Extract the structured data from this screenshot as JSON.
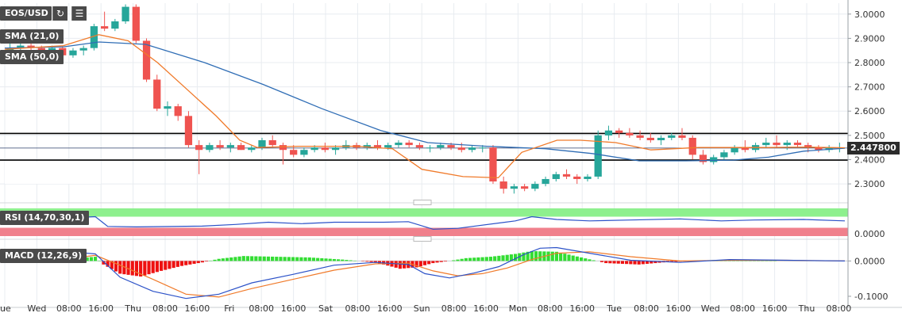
{
  "symbol_label": "EOS/USD",
  "toolbar": {
    "refresh_icon": "refresh-icon",
    "settings_icon": "chart-settings-icon"
  },
  "indicators": {
    "sma21_label": "SMA (21,0)",
    "sma50_label": "SMA (50,0)",
    "rsi_label": "RSI (14,70,30,1)",
    "macd_label": "MACD (12,26,9)"
  },
  "colors": {
    "bull": "#26a69a",
    "bear": "#ef5350",
    "sma21": "#f07a2a",
    "sma50": "#2f6db5",
    "rsi_line": "#2c52c8",
    "rsi_upper_band": "#8ef08e",
    "rsi_lower_band": "#f0808c",
    "macd_pos": "#33dd33",
    "macd_neg": "#ee1111",
    "macd_line": "#2c52c8",
    "signal_line": "#f07a2a",
    "grid": "#e8ecf0",
    "axis_text": "#333333",
    "level_line": "#000000"
  },
  "chart_data": {
    "type": "candlestick",
    "symbol": "EOS/USD",
    "price_axis": {
      "ticks": [
        "3.0000",
        "2.9000",
        "2.8000",
        "2.7000",
        "2.6000",
        "2.5000",
        "2.4000",
        "2.3000"
      ],
      "ylim": [
        2.235,
        3.045
      ]
    },
    "last_price": "2.447800",
    "horizontal_levels": [
      2.508,
      2.398
    ],
    "time_axis": [
      "ue",
      "Wed",
      "08:00",
      "16:00",
      "Thu",
      "08:00",
      "16:00",
      "Fri",
      "08:00",
      "16:00",
      "Sat",
      "08:00",
      "16:00",
      "Sun",
      "08:00",
      "16:00",
      "Mon",
      "08:00",
      "16:00",
      "Tue",
      "08:00",
      "16:00",
      "Wed",
      "08:00",
      "16:00",
      "Thu",
      "08:00"
    ],
    "bars_per_label": 2,
    "ohlc": [
      [
        2.85,
        2.88,
        2.82,
        2.86
      ],
      [
        2.86,
        2.88,
        2.84,
        2.87
      ],
      [
        2.87,
        2.89,
        2.85,
        2.86
      ],
      [
        2.86,
        2.87,
        2.84,
        2.85
      ],
      [
        2.85,
        2.87,
        2.83,
        2.86
      ],
      [
        2.86,
        2.87,
        2.82,
        2.83
      ],
      [
        2.83,
        2.86,
        2.82,
        2.85
      ],
      [
        2.85,
        2.87,
        2.83,
        2.86
      ],
      [
        2.86,
        2.96,
        2.85,
        2.95
      ],
      [
        2.95,
        3.01,
        2.93,
        2.94
      ],
      [
        2.94,
        2.98,
        2.93,
        2.97
      ],
      [
        2.97,
        3.04,
        2.96,
        3.03
      ],
      [
        3.03,
        3.04,
        2.88,
        2.89
      ],
      [
        2.89,
        2.9,
        2.72,
        2.73
      ],
      [
        2.73,
        2.75,
        2.6,
        2.61
      ],
      [
        2.61,
        2.64,
        2.58,
        2.62
      ],
      [
        2.62,
        2.63,
        2.56,
        2.58
      ],
      [
        2.58,
        2.6,
        2.45,
        2.46
      ],
      [
        2.46,
        2.48,
        2.34,
        2.44
      ],
      [
        2.44,
        2.47,
        2.43,
        2.46
      ],
      [
        2.46,
        2.48,
        2.44,
        2.45
      ],
      [
        2.45,
        2.47,
        2.43,
        2.46
      ],
      [
        2.46,
        2.47,
        2.44,
        2.44
      ],
      [
        2.44,
        2.46,
        2.43,
        2.45
      ],
      [
        2.45,
        2.49,
        2.44,
        2.48
      ],
      [
        2.48,
        2.5,
        2.45,
        2.46
      ],
      [
        2.46,
        2.47,
        2.38,
        2.44
      ],
      [
        2.44,
        2.46,
        2.41,
        2.42
      ],
      [
        2.42,
        2.45,
        2.41,
        2.44
      ],
      [
        2.44,
        2.46,
        2.43,
        2.45
      ],
      [
        2.45,
        2.47,
        2.43,
        2.44
      ],
      [
        2.44,
        2.46,
        2.42,
        2.45
      ],
      [
        2.45,
        2.48,
        2.44,
        2.46
      ],
      [
        2.46,
        2.47,
        2.44,
        2.45
      ],
      [
        2.45,
        2.47,
        2.44,
        2.46
      ],
      [
        2.46,
        2.48,
        2.44,
        2.45
      ],
      [
        2.45,
        2.47,
        2.44,
        2.46
      ],
      [
        2.46,
        2.48,
        2.45,
        2.47
      ],
      [
        2.47,
        2.48,
        2.45,
        2.46
      ],
      [
        2.46,
        2.47,
        2.44,
        2.45
      ],
      [
        2.45,
        2.46,
        2.43,
        2.45
      ],
      [
        2.45,
        2.47,
        2.44,
        2.46
      ],
      [
        2.46,
        2.47,
        2.44,
        2.45
      ],
      [
        2.45,
        2.47,
        2.43,
        2.44
      ],
      [
        2.44,
        2.46,
        2.43,
        2.45
      ],
      [
        2.45,
        2.46,
        2.43,
        2.45
      ],
      [
        2.45,
        2.46,
        2.3,
        2.31
      ],
      [
        2.31,
        2.33,
        2.26,
        2.28
      ],
      [
        2.28,
        2.3,
        2.26,
        2.29
      ],
      [
        2.29,
        2.3,
        2.27,
        2.28
      ],
      [
        2.28,
        2.31,
        2.27,
        2.3
      ],
      [
        2.3,
        2.33,
        2.29,
        2.32
      ],
      [
        2.32,
        2.35,
        2.31,
        2.34
      ],
      [
        2.34,
        2.36,
        2.32,
        2.33
      ],
      [
        2.33,
        2.34,
        2.3,
        2.32
      ],
      [
        2.32,
        2.34,
        2.31,
        2.33
      ],
      [
        2.33,
        2.52,
        2.32,
        2.5
      ],
      [
        2.5,
        2.54,
        2.48,
        2.52
      ],
      [
        2.52,
        2.53,
        2.49,
        2.51
      ],
      [
        2.51,
        2.53,
        2.49,
        2.5
      ],
      [
        2.5,
        2.52,
        2.48,
        2.49
      ],
      [
        2.49,
        2.51,
        2.47,
        2.48
      ],
      [
        2.48,
        2.5,
        2.46,
        2.49
      ],
      [
        2.49,
        2.51,
        2.48,
        2.5
      ],
      [
        2.5,
        2.53,
        2.48,
        2.49
      ],
      [
        2.49,
        2.5,
        2.4,
        2.42
      ],
      [
        2.42,
        2.44,
        2.38,
        2.39
      ],
      [
        2.39,
        2.42,
        2.38,
        2.41
      ],
      [
        2.41,
        2.44,
        2.4,
        2.43
      ],
      [
        2.43,
        2.46,
        2.42,
        2.45
      ],
      [
        2.45,
        2.48,
        2.43,
        2.44
      ],
      [
        2.44,
        2.47,
        2.43,
        2.46
      ],
      [
        2.46,
        2.49,
        2.45,
        2.47
      ],
      [
        2.47,
        2.5,
        2.45,
        2.46
      ],
      [
        2.46,
        2.48,
        2.44,
        2.47
      ],
      [
        2.47,
        2.48,
        2.45,
        2.46
      ],
      [
        2.46,
        2.47,
        2.43,
        2.45
      ],
      [
        2.45,
        2.46,
        2.43,
        2.44
      ],
      [
        2.44,
        2.46,
        2.43,
        2.45
      ],
      [
        2.45,
        2.47,
        2.43,
        2.45
      ]
    ],
    "sma21": [
      [
        0,
        2.855
      ],
      [
        10,
        2.87
      ],
      [
        16,
        2.915
      ],
      [
        21,
        2.89
      ],
      [
        26,
        2.8
      ],
      [
        31,
        2.69
      ],
      [
        36,
        2.58
      ],
      [
        40,
        2.48
      ],
      [
        43,
        2.45
      ],
      [
        50,
        2.455
      ],
      [
        60,
        2.455
      ],
      [
        66,
        2.445
      ],
      [
        71,
        2.36
      ],
      [
        78,
        2.33
      ],
      [
        84,
        2.325
      ],
      [
        88,
        2.43
      ],
      [
        94,
        2.48
      ],
      [
        98,
        2.48
      ],
      [
        104,
        2.47
      ],
      [
        110,
        2.44
      ],
      [
        118,
        2.45
      ],
      [
        130,
        2.45
      ],
      [
        136,
        2.452
      ],
      [
        143,
        2.449
      ]
    ],
    "sma50": [
      [
        0,
        2.86
      ],
      [
        10,
        2.865
      ],
      [
        16,
        2.885
      ],
      [
        24,
        2.875
      ],
      [
        34,
        2.8
      ],
      [
        44,
        2.71
      ],
      [
        54,
        2.61
      ],
      [
        64,
        2.52
      ],
      [
        72,
        2.47
      ],
      [
        82,
        2.455
      ],
      [
        92,
        2.445
      ],
      [
        100,
        2.425
      ],
      [
        108,
        2.395
      ],
      [
        116,
        2.395
      ],
      [
        124,
        2.398
      ],
      [
        130,
        2.41
      ],
      [
        136,
        2.435
      ],
      [
        143,
        2.447
      ]
    ],
    "rsi": {
      "label": "RSI (14,70,30,1)",
      "upper": 70,
      "lower": 30,
      "values": [
        [
          0,
          60
        ],
        [
          10,
          62
        ],
        [
          22,
          70
        ],
        [
          25,
          35
        ],
        [
          32,
          33
        ],
        [
          48,
          36
        ],
        [
          56,
          42
        ],
        [
          64,
          50
        ],
        [
          72,
          45
        ],
        [
          80,
          50
        ],
        [
          92,
          50
        ],
        [
          98,
          52
        ],
        [
          104,
          25
        ],
        [
          110,
          28
        ],
        [
          124,
          55
        ],
        [
          128,
          70
        ],
        [
          134,
          60
        ],
        [
          142,
          55
        ],
        [
          152,
          58
        ],
        [
          164,
          62
        ],
        [
          174,
          55
        ],
        [
          182,
          58
        ],
        [
          194,
          60
        ],
        [
          204,
          55
        ]
      ]
    },
    "macd": {
      "label": "MACD (12,26,9)",
      "axis_ticks": [
        "0.0000",
        "-0.1000"
      ],
      "ylim": [
        -0.118,
        0.048
      ],
      "histogram": [
        [
          0,
          0.0
        ],
        [
          10,
          0.004
        ],
        [
          18,
          0.008
        ],
        [
          22,
          0.012
        ],
        [
          24,
          -0.01
        ],
        [
          28,
          -0.036
        ],
        [
          33,
          -0.044
        ],
        [
          38,
          -0.028
        ],
        [
          43,
          -0.014
        ],
        [
          48,
          -0.004
        ],
        [
          52,
          0.006
        ],
        [
          58,
          0.014
        ],
        [
          66,
          0.012
        ],
        [
          74,
          0.01
        ],
        [
          82,
          0.004
        ],
        [
          86,
          0.0
        ],
        [
          90,
          -0.004
        ],
        [
          96,
          -0.022
        ],
        [
          100,
          -0.018
        ],
        [
          104,
          -0.006
        ],
        [
          108,
          0.0
        ],
        [
          112,
          0.008
        ],
        [
          118,
          0.012
        ],
        [
          124,
          0.02
        ],
        [
          128,
          0.028
        ],
        [
          134,
          0.026
        ],
        [
          140,
          0.01
        ],
        [
          146,
          -0.006
        ],
        [
          154,
          -0.01
        ],
        [
          160,
          -0.004
        ],
        [
          170,
          0.002
        ],
        [
          180,
          0.004
        ],
        [
          190,
          0.0
        ],
        [
          204,
          0.0
        ]
      ],
      "macd_line": [
        [
          0,
          0.002
        ],
        [
          10,
          0.006
        ],
        [
          18,
          0.024
        ],
        [
          22,
          0.02
        ],
        [
          28,
          -0.046
        ],
        [
          36,
          -0.086
        ],
        [
          44,
          -0.106
        ],
        [
          52,
          -0.094
        ],
        [
          60,
          -0.062
        ],
        [
          70,
          -0.038
        ],
        [
          80,
          -0.012
        ],
        [
          90,
          -0.004
        ],
        [
          98,
          -0.01
        ],
        [
          102,
          -0.036
        ],
        [
          108,
          -0.048
        ],
        [
          114,
          -0.034
        ],
        [
          120,
          -0.016
        ],
        [
          126,
          0.018
        ],
        [
          130,
          0.036
        ],
        [
          134,
          0.038
        ],
        [
          142,
          0.022
        ],
        [
          152,
          0.002
        ],
        [
          164,
          -0.004
        ],
        [
          176,
          0.004
        ],
        [
          190,
          0.002
        ],
        [
          204,
          0.0
        ]
      ],
      "signal_line": [
        [
          0,
          0.0
        ],
        [
          10,
          0.002
        ],
        [
          18,
          0.01
        ],
        [
          22,
          0.016
        ],
        [
          28,
          -0.012
        ],
        [
          36,
          -0.052
        ],
        [
          44,
          -0.094
        ],
        [
          52,
          -0.102
        ],
        [
          60,
          -0.078
        ],
        [
          70,
          -0.052
        ],
        [
          80,
          -0.026
        ],
        [
          90,
          -0.008
        ],
        [
          98,
          -0.006
        ],
        [
          104,
          -0.028
        ],
        [
          110,
          -0.042
        ],
        [
          116,
          -0.036
        ],
        [
          122,
          -0.02
        ],
        [
          128,
          0.004
        ],
        [
          134,
          0.022
        ],
        [
          142,
          0.026
        ],
        [
          152,
          0.012
        ],
        [
          164,
          0.0
        ],
        [
          176,
          0.002
        ],
        [
          190,
          0.002
        ],
        [
          204,
          0.0
        ]
      ]
    }
  }
}
